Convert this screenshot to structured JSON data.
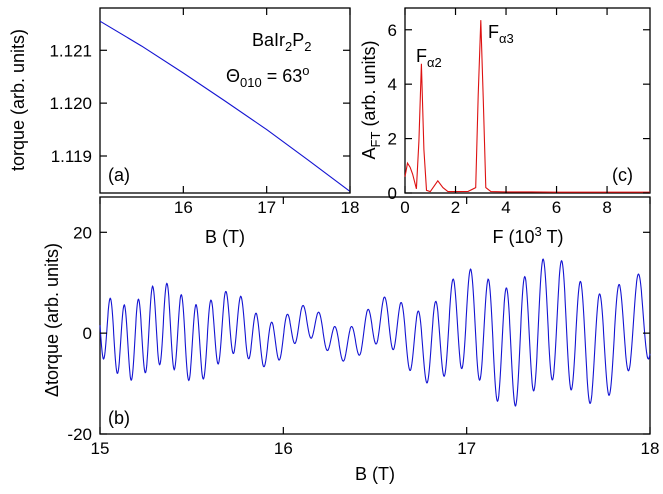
{
  "chart_data": [
    {
      "panel": "(a)",
      "type": "line",
      "annotation": {
        "compound": "BaIr2P2",
        "angle": "Θ010 = 63o"
      },
      "xlabel": "B (T)",
      "ylabel": "torque (arb. units)",
      "xlim": [
        15,
        18
      ],
      "ylim": [
        1.1183,
        1.1218
      ],
      "xticks": [
        16,
        17,
        18
      ],
      "yticks": [
        1.119,
        1.12,
        1.121
      ],
      "ytick_labels": [
        "1.119",
        "1.120",
        "1.121"
      ],
      "color": "#1414d2",
      "series": [
        {
          "x": [
            15.0,
            15.5,
            16.0,
            16.5,
            17.0,
            17.5,
            18.0
          ],
          "y": [
            1.12155,
            1.12108,
            1.12057,
            1.12004,
            1.1195,
            1.11892,
            1.11833
          ]
        }
      ]
    },
    {
      "panel": "(c)",
      "type": "line",
      "xlabel": "F (10³ T)",
      "ylabel": "A_FT (arb. units)",
      "xlim": [
        0,
        9.7
      ],
      "ylim": [
        0,
        6.8
      ],
      "xticks": [
        0,
        2,
        4,
        6,
        8
      ],
      "yticks": [
        0,
        2,
        4,
        6
      ],
      "color": "#dd1111",
      "peak_labels": [
        {
          "text": "Fα2",
          "x": 0.65,
          "y": 4.75
        },
        {
          "text": "Fα3",
          "x": 3.0,
          "y": 6.35
        }
      ],
      "series": [
        {
          "x": [
            0.0,
            0.1,
            0.2,
            0.3,
            0.45,
            0.55,
            0.65,
            0.75,
            0.85,
            1.0,
            1.3,
            1.5,
            1.7,
            2.0,
            2.5,
            2.8,
            2.9,
            3.0,
            3.1,
            3.2,
            3.4,
            4.0,
            5.0,
            6.0,
            7.0,
            8.0,
            9.7
          ],
          "y": [
            0.6,
            1.1,
            0.95,
            0.7,
            0.15,
            1.9,
            4.75,
            1.6,
            0.1,
            0.05,
            0.45,
            0.2,
            0.05,
            0.05,
            0.06,
            0.2,
            3.6,
            6.35,
            3.4,
            0.2,
            0.05,
            0.04,
            0.04,
            0.03,
            0.03,
            0.03,
            0.03
          ]
        }
      ]
    },
    {
      "panel": "(b)",
      "type": "line",
      "xlabel": "B (T)",
      "ylabel": "Δtorque (arb. units)",
      "xlim": [
        15,
        18
      ],
      "ylim": [
        -20,
        27
      ],
      "xticks": [
        15,
        16,
        17,
        18
      ],
      "yticks": [
        -20,
        0,
        20
      ],
      "color": "#1414d2",
      "oscillation": {
        "frequencies_T": [
          3000,
          630
        ],
        "amplitudes": [
          8.5,
          3.2
        ],
        "beat_frequency_T": 130,
        "beat_depth": 0.7
      }
    }
  ]
}
